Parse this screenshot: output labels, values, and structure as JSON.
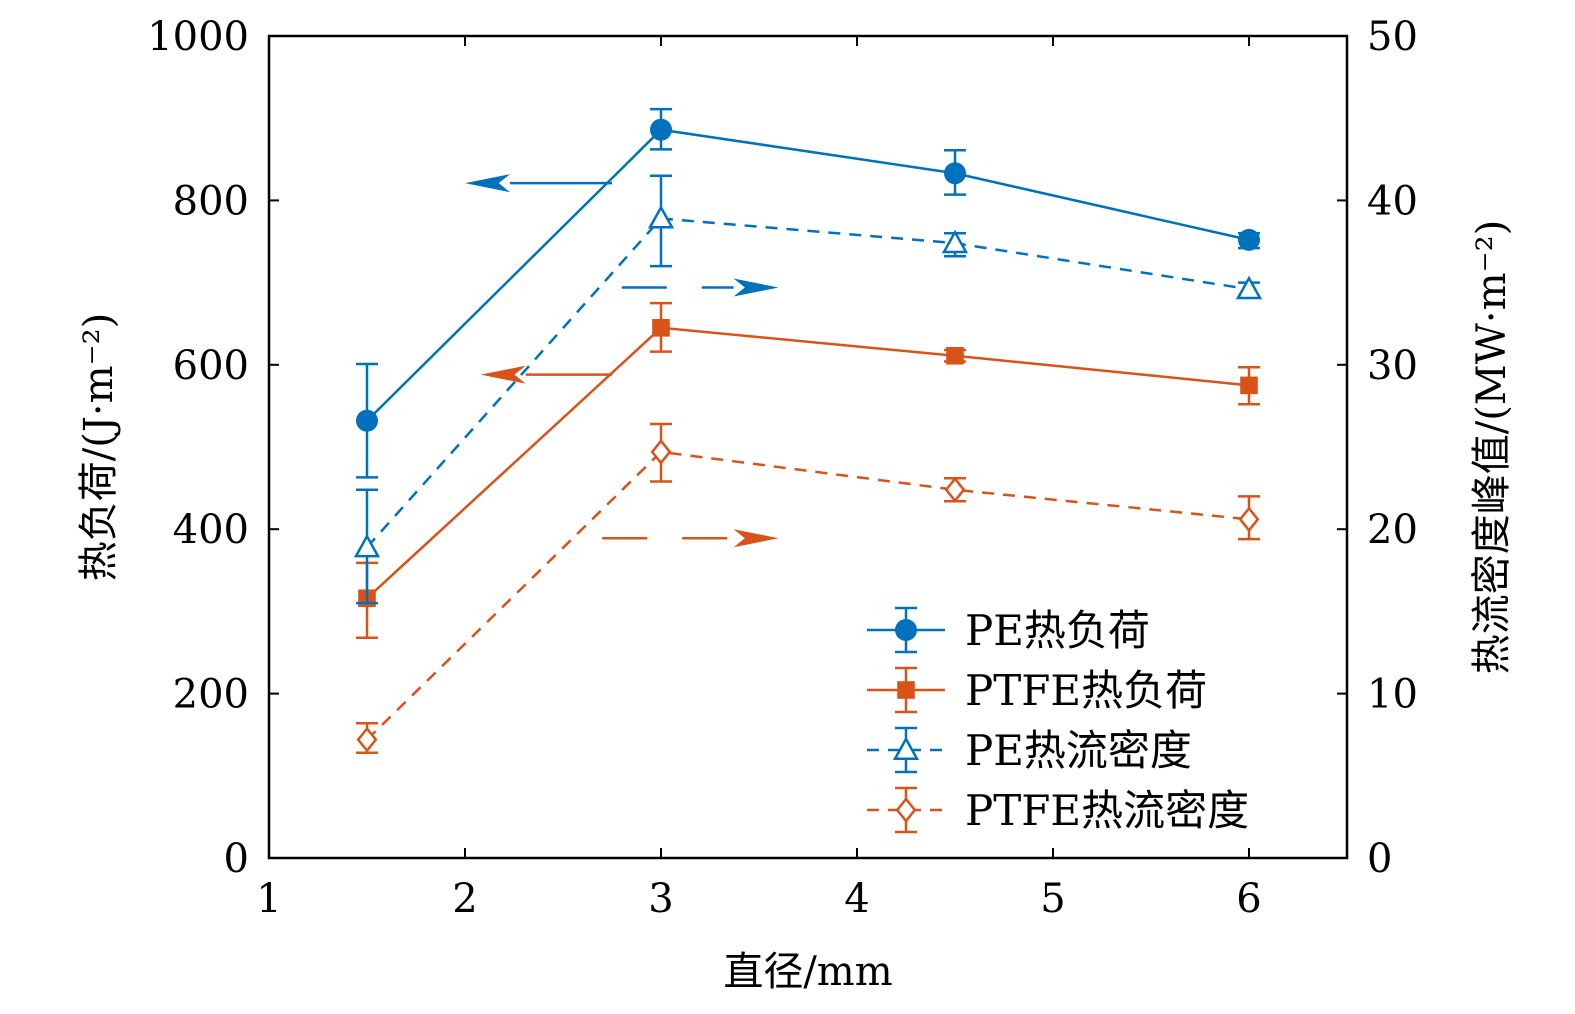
{
  "chart_data": {
    "type": "line",
    "xlabel": "直径/mm",
    "ylabel_left": "热负荷/(J·m⁻²)",
    "ylabel_right": "热流密度峰值/(MW·m⁻²)",
    "xlim": [
      1,
      6.5
    ],
    "ylim_left": [
      0,
      1000
    ],
    "ylim_right": [
      0,
      50
    ],
    "x_ticks": [
      1,
      2,
      3,
      4,
      5,
      6
    ],
    "y_ticks_left": [
      0,
      200,
      400,
      600,
      800,
      1000
    ],
    "y_ticks_right": [
      0,
      10,
      20,
      30,
      40,
      50
    ],
    "grid": false,
    "legend_position": "bottom-right",
    "series": [
      {
        "name": "PE热负荷",
        "axis": "left",
        "color": "#0072BD",
        "marker": "circle",
        "dash": false,
        "x": [
          1.5,
          3,
          4.5,
          6
        ],
        "y": [
          532,
          886,
          833,
          752
        ],
        "err_low": [
          463,
          862,
          807,
          742
        ],
        "err_high": [
          601,
          911,
          861,
          760
        ]
      },
      {
        "name": "PTFE热负荷",
        "axis": "left",
        "color": "#D95319",
        "marker": "square",
        "dash": false,
        "x": [
          1.5,
          3,
          4.5,
          6
        ],
        "y": [
          316,
          645,
          611,
          575
        ],
        "err_low": [
          268,
          616,
          604,
          552
        ],
        "err_high": [
          359,
          675,
          618,
          597
        ]
      },
      {
        "name": "PE热流密度",
        "axis": "right",
        "color": "#0072BD",
        "marker": "triangle",
        "dash": true,
        "x": [
          1.5,
          3,
          4.5,
          6
        ],
        "y": [
          18.9,
          38.9,
          37.4,
          34.6
        ],
        "err_low": [
          15.5,
          36.0,
          36.6,
          34.2
        ],
        "err_high": [
          22.4,
          41.5,
          38.0,
          35.0
        ]
      },
      {
        "name": "PTFE热流密度",
        "axis": "right",
        "color": "#D95319",
        "marker": "diamond",
        "dash": true,
        "x": [
          1.5,
          3,
          4.5,
          6
        ],
        "y": [
          7.2,
          24.7,
          22.4,
          20.6
        ],
        "err_low": [
          6.4,
          22.9,
          21.7,
          19.4
        ],
        "err_high": [
          8.2,
          26.4,
          23.1,
          22.0
        ]
      }
    ],
    "annotations": [
      {
        "type": "arrow",
        "direction": "left",
        "series": "PE热负荷",
        "x_from": 2.75,
        "x_to": 2.0,
        "y_left": 821
      },
      {
        "type": "arrow",
        "direction": "right",
        "series": "PE热流密度",
        "x_from": 2.8,
        "x_to": 3.6,
        "y_left": 694
      },
      {
        "type": "arrow",
        "direction": "left",
        "series": "PTFE热负荷",
        "x_from": 2.75,
        "x_to": 2.08,
        "y_left": 588
      },
      {
        "type": "arrow",
        "direction": "right",
        "series": "PTFE热流密度",
        "x_from": 2.7,
        "x_to": 3.6,
        "y_left": 389
      }
    ]
  }
}
